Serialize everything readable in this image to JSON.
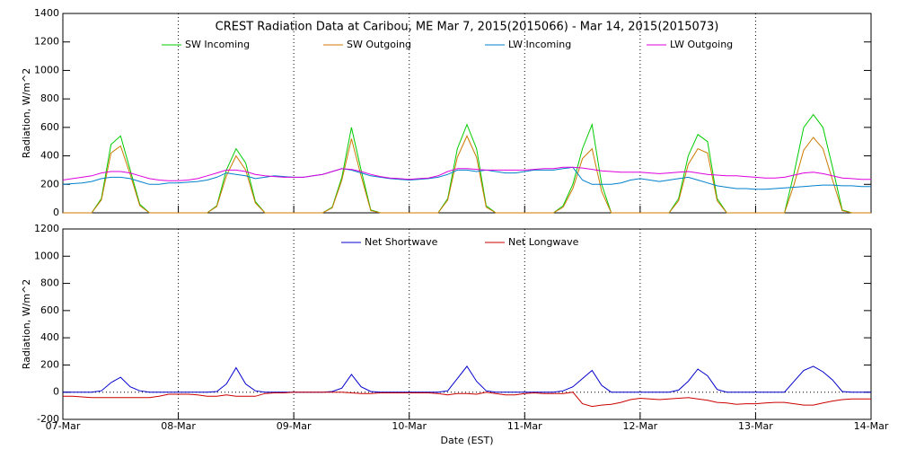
{
  "chart_data": [
    {
      "type": "line",
      "title": "CREST Radiation Data at Caribou, ME   Mar  7, 2015(2015066) - Mar 14, 2015(2015073)",
      "ylabel": "Radiation, W/m^2",
      "legend": "top",
      "xlim": [
        0,
        168
      ],
      "xticks": [
        0,
        24,
        48,
        72,
        96,
        120,
        144,
        168
      ],
      "ylim": [
        0,
        1400
      ],
      "yticks": [
        0,
        200,
        400,
        600,
        800,
        1000,
        1200,
        1400
      ],
      "x": [
        0,
        2,
        4,
        6,
        8,
        10,
        12,
        14,
        16,
        18,
        20,
        22,
        24,
        26,
        28,
        30,
        32,
        34,
        36,
        38,
        40,
        42,
        44,
        46,
        48,
        50,
        52,
        54,
        56,
        58,
        60,
        62,
        64,
        66,
        68,
        70,
        72,
        74,
        76,
        78,
        80,
        82,
        84,
        86,
        88,
        90,
        92,
        94,
        96,
        98,
        100,
        102,
        104,
        106,
        108,
        110,
        112,
        114,
        116,
        118,
        120,
        122,
        124,
        126,
        128,
        130,
        132,
        134,
        136,
        138,
        140,
        142,
        144,
        146,
        148,
        150,
        152,
        154,
        156,
        158,
        160,
        162,
        164,
        166,
        168
      ],
      "series": [
        {
          "name": "SW Incoming",
          "color": "#00cc00",
          "values": [
            0,
            0,
            0,
            0,
            100,
            480,
            540,
            300,
            60,
            0,
            0,
            0,
            0,
            0,
            0,
            0,
            50,
            300,
            450,
            350,
            80,
            0,
            0,
            0,
            0,
            0,
            0,
            0,
            40,
            250,
            600,
            300,
            20,
            0,
            0,
            0,
            0,
            0,
            0,
            0,
            100,
            450,
            620,
            450,
            50,
            0,
            0,
            0,
            0,
            0,
            0,
            0,
            50,
            200,
            450,
            620,
            200,
            0,
            0,
            0,
            0,
            0,
            0,
            0,
            100,
            400,
            550,
            500,
            100,
            0,
            0,
            0,
            0,
            0,
            0,
            0,
            280,
            600,
            690,
            600,
            320,
            20,
            0,
            0,
            0
          ]
        },
        {
          "name": "SW Outgoing",
          "color": "#cc7a00",
          "values": [
            0,
            0,
            0,
            0,
            90,
            420,
            470,
            270,
            50,
            0,
            0,
            0,
            0,
            0,
            0,
            0,
            45,
            260,
            400,
            300,
            70,
            0,
            0,
            0,
            0,
            0,
            0,
            0,
            35,
            230,
            520,
            260,
            15,
            0,
            0,
            0,
            0,
            0,
            0,
            0,
            90,
            390,
            540,
            390,
            40,
            0,
            0,
            0,
            0,
            0,
            0,
            0,
            40,
            170,
            380,
            450,
            150,
            0,
            0,
            0,
            0,
            0,
            0,
            0,
            85,
            340,
            450,
            420,
            85,
            0,
            0,
            0,
            0,
            0,
            0,
            0,
            200,
            440,
            530,
            450,
            230,
            15,
            0,
            0,
            0
          ]
        },
        {
          "name": "LW Incoming",
          "color": "#0080cc",
          "values": [
            200,
            205,
            210,
            220,
            240,
            250,
            250,
            240,
            220,
            200,
            200,
            210,
            210,
            215,
            220,
            230,
            250,
            280,
            270,
            260,
            240,
            250,
            260,
            255,
            250,
            250,
            260,
            270,
            290,
            310,
            300,
            280,
            260,
            250,
            240,
            235,
            230,
            235,
            240,
            250,
            270,
            300,
            300,
            290,
            300,
            290,
            280,
            280,
            290,
            300,
            300,
            300,
            310,
            320,
            230,
            200,
            200,
            200,
            210,
            230,
            240,
            230,
            220,
            230,
            240,
            250,
            230,
            210,
            190,
            180,
            170,
            170,
            165,
            165,
            170,
            175,
            180,
            185,
            190,
            195,
            195,
            190,
            190,
            185,
            185
          ]
        },
        {
          "name": "LW Outgoing",
          "color": "#dd00dd",
          "values": [
            230,
            240,
            250,
            260,
            280,
            290,
            290,
            280,
            260,
            240,
            230,
            225,
            225,
            230,
            240,
            260,
            280,
            300,
            300,
            290,
            270,
            260,
            255,
            250,
            250,
            250,
            260,
            270,
            290,
            310,
            305,
            290,
            270,
            255,
            245,
            240,
            235,
            240,
            245,
            260,
            290,
            310,
            310,
            305,
            300,
            300,
            300,
            300,
            300,
            305,
            310,
            310,
            320,
            320,
            315,
            305,
            295,
            290,
            285,
            285,
            285,
            280,
            275,
            280,
            285,
            290,
            280,
            270,
            265,
            260,
            260,
            255,
            250,
            245,
            245,
            250,
            265,
            280,
            285,
            275,
            260,
            245,
            240,
            235,
            235
          ]
        }
      ]
    },
    {
      "type": "line",
      "xlabel": "Date (EST)",
      "ylabel": "Radiation, W/m^2",
      "legend": "top",
      "xlim": [
        0,
        168
      ],
      "xticks": [
        {
          "value": 0,
          "label": "07-Mar"
        },
        {
          "value": 24,
          "label": "08-Mar"
        },
        {
          "value": 48,
          "label": "09-Mar"
        },
        {
          "value": 72,
          "label": "10-Mar"
        },
        {
          "value": 96,
          "label": "11-Mar"
        },
        {
          "value": 120,
          "label": "12-Mar"
        },
        {
          "value": 144,
          "label": "13-Mar"
        },
        {
          "value": 168,
          "label": "14-Mar"
        }
      ],
      "ylim": [
        -200,
        1200
      ],
      "yticks": [
        -200,
        0,
        200,
        400,
        600,
        800,
        1000,
        1200
      ],
      "x": [
        0,
        2,
        4,
        6,
        8,
        10,
        12,
        14,
        16,
        18,
        20,
        22,
        24,
        26,
        28,
        30,
        32,
        34,
        36,
        38,
        40,
        42,
        44,
        46,
        48,
        50,
        52,
        54,
        56,
        58,
        60,
        62,
        64,
        66,
        68,
        70,
        72,
        74,
        76,
        78,
        80,
        82,
        84,
        86,
        88,
        90,
        92,
        94,
        96,
        98,
        100,
        102,
        104,
        106,
        108,
        110,
        112,
        114,
        116,
        118,
        120,
        122,
        124,
        126,
        128,
        130,
        132,
        134,
        136,
        138,
        140,
        142,
        144,
        146,
        148,
        150,
        152,
        154,
        156,
        158,
        160,
        162,
        164,
        166,
        168
      ],
      "series": [
        {
          "name": "Net Shortwave",
          "color": "#0000cc",
          "values": [
            0,
            0,
            0,
            0,
            10,
            70,
            110,
            40,
            10,
            0,
            0,
            0,
            0,
            0,
            0,
            0,
            5,
            60,
            180,
            60,
            10,
            0,
            0,
            0,
            0,
            0,
            0,
            0,
            5,
            30,
            130,
            40,
            5,
            0,
            0,
            0,
            0,
            0,
            0,
            0,
            10,
            100,
            190,
            80,
            10,
            0,
            0,
            0,
            0,
            0,
            0,
            0,
            10,
            40,
            100,
            160,
            50,
            0,
            0,
            0,
            0,
            0,
            0,
            0,
            15,
            80,
            170,
            120,
            20,
            0,
            0,
            0,
            0,
            0,
            0,
            0,
            80,
            160,
            190,
            150,
            90,
            5,
            0,
            0,
            0
          ]
        },
        {
          "name": "Net Longwave",
          "color": "#cc0000",
          "values": [
            -30,
            -30,
            -35,
            -40,
            -40,
            -40,
            -40,
            -40,
            -40,
            -40,
            -30,
            -15,
            -15,
            -15,
            -20,
            -30,
            -30,
            -20,
            -30,
            -30,
            -30,
            -10,
            -5,
            -5,
            0,
            0,
            0,
            0,
            0,
            0,
            -5,
            -10,
            -10,
            -5,
            -5,
            -5,
            -5,
            -5,
            -5,
            -10,
            -20,
            -10,
            -10,
            -15,
            0,
            -10,
            -20,
            -20,
            -10,
            -5,
            -10,
            -10,
            -10,
            0,
            -85,
            -105,
            -95,
            -90,
            -75,
            -55,
            -45,
            -50,
            -55,
            -50,
            -45,
            -40,
            -50,
            -60,
            -75,
            -80,
            -90,
            -85,
            -85,
            -80,
            -75,
            -75,
            -85,
            -95,
            -95,
            -80,
            -65,
            -55,
            -50,
            -50,
            -50
          ]
        }
      ]
    }
  ]
}
